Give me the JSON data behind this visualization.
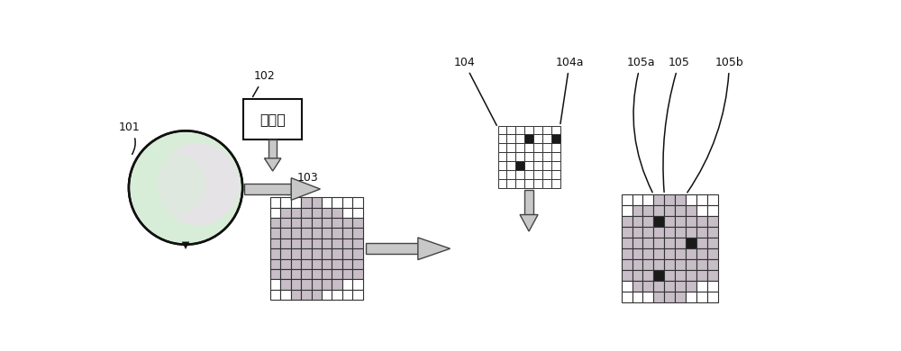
{
  "bg_color": "#ffffff",
  "pass_color": "#c8bec8",
  "white_color": "#ffffff",
  "black_color": "#1a1a1a",
  "arrow_fill": "#c8c8c8",
  "arrow_edge": "#444444",
  "box_fill": "#ffffff",
  "box_edge": "#111111",
  "text_color": "#111111",
  "wafer_green": "#d8edd8",
  "wafer_pink": "#f0ddf0",
  "grid_edge": "#333333",
  "box_text": "测试机",
  "label_101": "101",
  "label_102": "102",
  "label_103": "103",
  "label_104": "104",
  "label_104a": "104a",
  "label_105": "105",
  "label_105a": "105a",
  "label_105b": "105b",
  "grid103_rows": 10,
  "grid103_cols": 9,
  "grid104_rows": 7,
  "grid104_cols": 7,
  "grid105_rows": 10,
  "grid105_cols": 9
}
